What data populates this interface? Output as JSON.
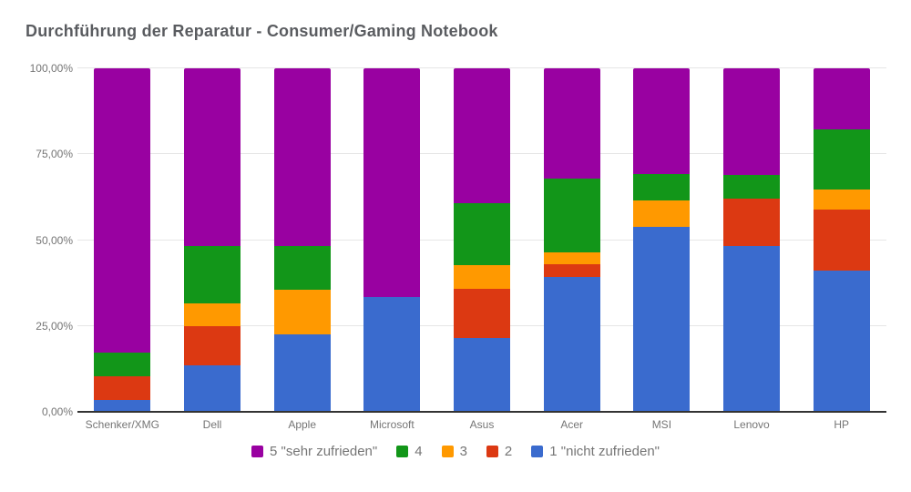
{
  "chart_data": {
    "type": "bar",
    "subtype": "stacked-100-percent-vertical",
    "title": "Durchführung der Reparatur - Consumer/Gaming Notebook",
    "categories": [
      "Schenker/XMG",
      "Dell",
      "Apple",
      "Microsoft",
      "Asus",
      "Acer",
      "MSI",
      "Lenovo",
      "HP"
    ],
    "series": [
      {
        "key": "5",
        "name": "5 \"sehr zufrieden\"",
        "color": "#9901A1",
        "values": [
          82.8,
          51.8,
          51.6,
          66.7,
          39.3,
          32.1,
          30.8,
          31.0,
          17.7
        ]
      },
      {
        "key": "4",
        "name": "4",
        "color": "#129619",
        "values": [
          6.9,
          16.7,
          12.9,
          0,
          17.9,
          21.4,
          7.7,
          6.9,
          17.6
        ]
      },
      {
        "key": "3",
        "name": "3",
        "color": "#FF9900",
        "values": [
          0,
          6.5,
          12.9,
          0,
          7.1,
          3.6,
          7.7,
          0,
          5.9
        ]
      },
      {
        "key": "2",
        "name": "2",
        "color": "#DC3912",
        "values": [
          6.9,
          11.6,
          0,
          0,
          14.3,
          3.6,
          0,
          13.8,
          17.6
        ]
      },
      {
        "key": "1",
        "name": "1 \"nicht zufrieden\"",
        "color": "#3A6BCE",
        "values": [
          3.4,
          13.4,
          22.6,
          33.3,
          21.4,
          39.3,
          53.8,
          48.3,
          41.2
        ]
      }
    ],
    "stack_order_top_to_bottom": [
      "5 \"sehr zufrieden\"",
      "4",
      "3",
      "2",
      "1 \"nicht zufrieden\""
    ],
    "y_axis": {
      "min": 0,
      "max": 100,
      "format": "percent-comma-decimal",
      "ticks": [
        {
          "label": "0,00%",
          "value": 0
        },
        {
          "label": "25,00%",
          "value": 25
        },
        {
          "label": "50,00%",
          "value": 50
        },
        {
          "label": "75,00%",
          "value": 75
        },
        {
          "label": "100,00%",
          "value": 100
        }
      ]
    },
    "legend": {
      "position": "bottom"
    },
    "grid": true
  },
  "colors": {
    "background": "#FFFFFF",
    "gridline": "#E6E6E6",
    "axis_baseline": "#333333",
    "tick_label": "#757575",
    "title": "#5A5C60"
  }
}
